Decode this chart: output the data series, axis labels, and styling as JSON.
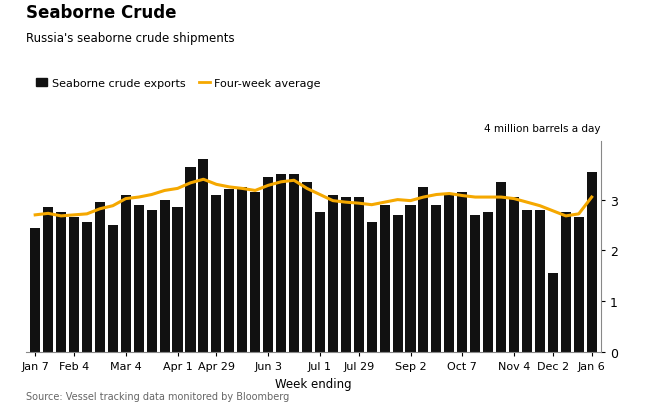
{
  "title": "Seaborne Crude",
  "subtitle": "Russia's seaborne crude shipments",
  "legend_bar": "Seaborne crude exports",
  "legend_line": "Four-week average",
  "ylabel_annotation": "4 million barrels a day",
  "xlabel": "Week ending",
  "source": "Source: Vessel tracking data monitored by Bloomberg",
  "bar_color": "#111111",
  "line_color": "#F5A800",
  "ylim": [
    0,
    4.15
  ],
  "yticks": [
    0,
    1,
    2,
    3
  ],
  "x_tick_labels": [
    "Jan 7",
    "Feb 4",
    "Mar 4",
    "Apr 1",
    "Apr 29",
    "Jun 3",
    "Jul 1",
    "Jul 29",
    "Sep 2",
    "Oct 7",
    "Nov 4",
    "Dec 2",
    "Jan 6"
  ],
  "x_tick_positions": [
    0,
    3,
    7,
    11,
    14,
    18,
    22,
    25,
    29,
    33,
    37,
    40,
    43
  ],
  "bar_values": [
    2.45,
    2.85,
    2.75,
    2.65,
    2.55,
    2.95,
    2.5,
    3.1,
    2.9,
    2.8,
    3.0,
    2.85,
    3.65,
    3.8,
    3.1,
    3.2,
    3.25,
    3.15,
    3.45,
    3.5,
    3.5,
    3.35,
    2.75,
    3.1,
    3.05,
    3.05,
    2.55,
    2.9,
    2.7,
    2.9,
    3.25,
    2.9,
    3.1,
    3.15,
    2.7,
    2.75,
    3.35,
    3.05,
    2.8,
    2.8,
    1.55,
    2.75,
    2.65,
    3.55
  ],
  "avg_values": [
    2.7,
    2.73,
    2.68,
    2.7,
    2.72,
    2.82,
    2.88,
    3.02,
    3.05,
    3.1,
    3.18,
    3.22,
    3.33,
    3.4,
    3.3,
    3.25,
    3.22,
    3.18,
    3.28,
    3.35,
    3.38,
    3.22,
    3.1,
    2.98,
    2.95,
    2.93,
    2.9,
    2.95,
    3.0,
    2.98,
    3.05,
    3.1,
    3.12,
    3.08,
    3.05,
    3.05,
    3.05,
    3.02,
    2.95,
    2.88,
    2.78,
    2.68,
    2.72,
    3.05
  ]
}
